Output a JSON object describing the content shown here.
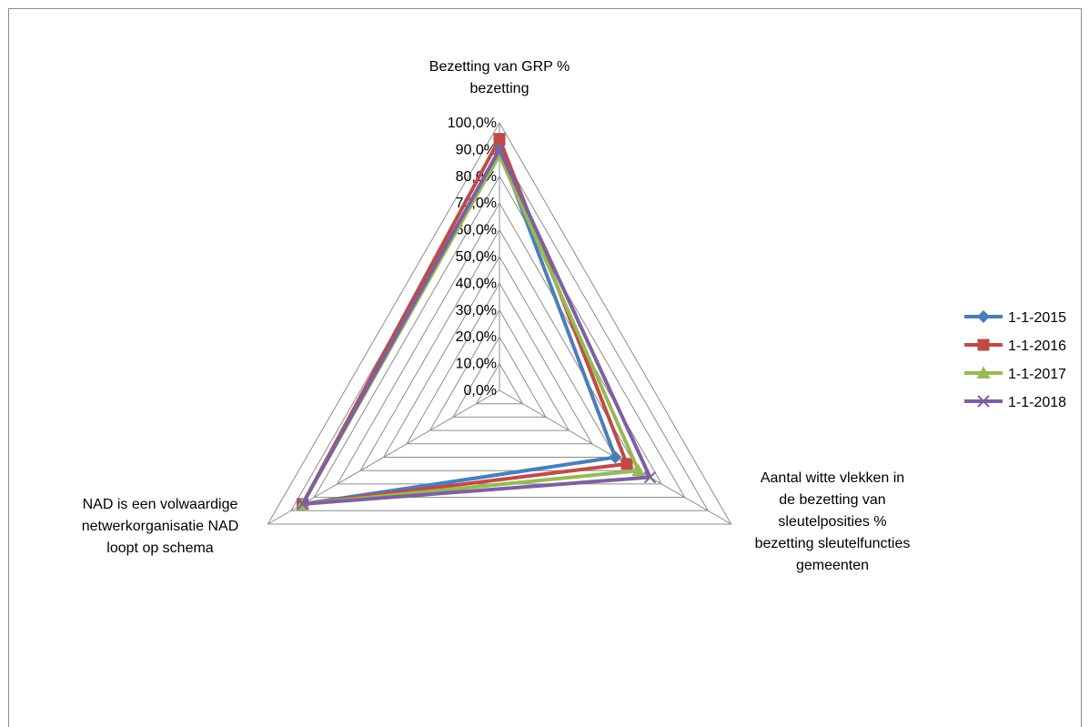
{
  "chart_data": {
    "type": "radar",
    "axes": [
      {
        "label_lines": [
          "Bezetting van GRP %",
          "bezetting"
        ]
      },
      {
        "label_lines": [
          "Aantal witte vlekken in",
          "de bezetting van",
          "sleutelposities %",
          "bezetting sleutelfuncties",
          "gemeenten"
        ]
      },
      {
        "label_lines": [
          "NAD is een volwaardige",
          "netwerkorganisatie NAD",
          "loopt op schema"
        ]
      }
    ],
    "ticks": [
      "0,0%",
      "10,0%",
      "20,0%",
      "30,0%",
      "40,0%",
      "50,0%",
      "60,0%",
      "70,0%",
      "80,0%",
      "90,0%",
      "100,0%"
    ],
    "range": [
      0,
      100
    ],
    "grid": true,
    "legend": "right",
    "series": [
      {
        "name": "1-1-2015",
        "color": "#4a7ebb",
        "marker": "diamond",
        "values": [
          90,
          50,
          85
        ]
      },
      {
        "name": "1-1-2016",
        "color": "#be4b48",
        "marker": "square",
        "values": [
          94,
          55,
          85
        ]
      },
      {
        "name": "1-1-2017",
        "color": "#98b954",
        "marker": "triangle",
        "values": [
          88,
          60,
          85
        ]
      },
      {
        "name": "1-1-2018",
        "color": "#7d60a0",
        "marker": "x",
        "values": [
          90,
          65,
          85
        ]
      }
    ]
  }
}
